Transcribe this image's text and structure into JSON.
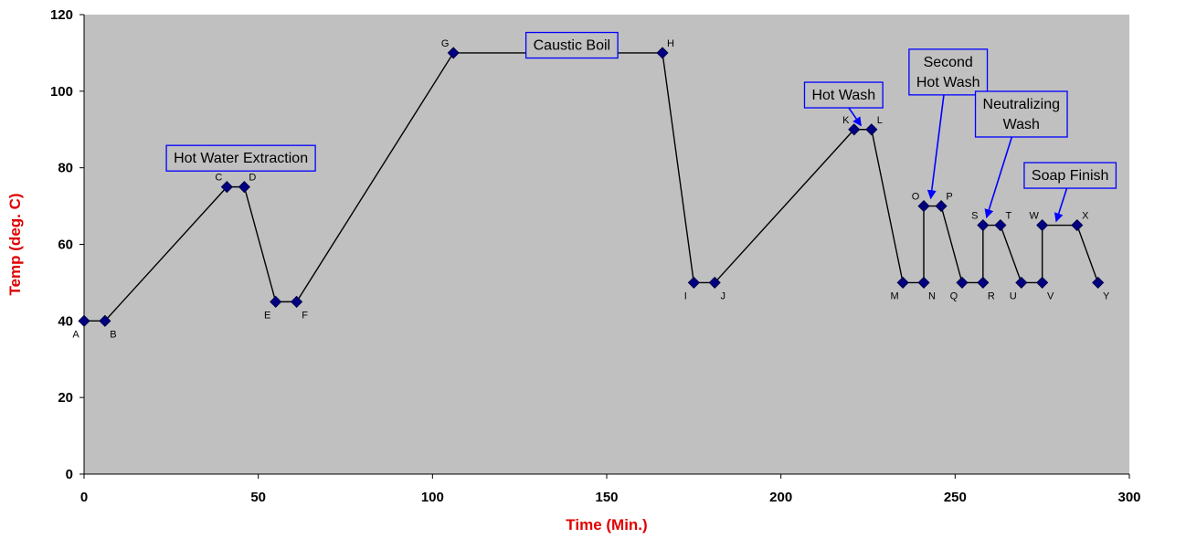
{
  "chart_data": {
    "type": "line",
    "xlabel": "Time (Min.)",
    "ylabel": "Temp (deg. C)",
    "xlim": [
      0,
      300
    ],
    "ylim": [
      0,
      120
    ],
    "xticks": [
      0,
      50,
      100,
      150,
      200,
      250,
      300
    ],
    "yticks": [
      0,
      20,
      40,
      60,
      80,
      100,
      120
    ],
    "grid": false,
    "colors": {
      "plot_background": "#c0c0c0",
      "line": "#000000",
      "marker": "#000080",
      "axis_title": "#e00000",
      "annotation_border": "#0000ff",
      "arrow": "#0000ff"
    },
    "points": [
      {
        "label": "A",
        "x": 0,
        "y": 40
      },
      {
        "label": "B",
        "x": 6,
        "y": 40
      },
      {
        "label": "C",
        "x": 41,
        "y": 75
      },
      {
        "label": "D",
        "x": 46,
        "y": 75
      },
      {
        "label": "E",
        "x": 55,
        "y": 45
      },
      {
        "label": "F",
        "x": 61,
        "y": 45
      },
      {
        "label": "G",
        "x": 106,
        "y": 110
      },
      {
        "label": "H",
        "x": 166,
        "y": 110
      },
      {
        "label": "I",
        "x": 175,
        "y": 50
      },
      {
        "label": "J",
        "x": 181,
        "y": 50
      },
      {
        "label": "K",
        "x": 221,
        "y": 90
      },
      {
        "label": "L",
        "x": 226,
        "y": 90
      },
      {
        "label": "M",
        "x": 235,
        "y": 50
      },
      {
        "label": "N",
        "x": 241,
        "y": 50
      },
      {
        "label": "O",
        "x": 241,
        "y": 70
      },
      {
        "label": "P",
        "x": 246,
        "y": 70
      },
      {
        "label": "Q",
        "x": 252,
        "y": 50
      },
      {
        "label": "R",
        "x": 258,
        "y": 50
      },
      {
        "label": "S",
        "x": 258,
        "y": 65
      },
      {
        "label": "T",
        "x": 263,
        "y": 65
      },
      {
        "label": "U",
        "x": 269,
        "y": 50
      },
      {
        "label": "V",
        "x": 275,
        "y": 50
      },
      {
        "label": "W",
        "x": 275,
        "y": 65
      },
      {
        "label": "X",
        "x": 285,
        "y": 65
      },
      {
        "label": "Y",
        "x": 291,
        "y": 50
      }
    ],
    "annotations": [
      {
        "lines": [
          "Hot Water Extraction"
        ],
        "x": 45,
        "y": 82.5
      },
      {
        "lines": [
          "Caustic Boil"
        ],
        "x": 140,
        "y": 112
      },
      {
        "lines": [
          "Hot Wash"
        ],
        "x": 218,
        "y": 99,
        "arrow_to": [
          223,
          91
        ]
      },
      {
        "lines": [
          "Second",
          "Hot Wash"
        ],
        "x": 248,
        "y": 105,
        "arrow_to": [
          243,
          72
        ]
      },
      {
        "lines": [
          "Neutralizing",
          "Wash"
        ],
        "x": 269,
        "y": 94,
        "arrow_to": [
          259,
          67
        ]
      },
      {
        "lines": [
          "Soap Finish"
        ],
        "x": 283,
        "y": 78,
        "arrow_to": [
          279,
          66
        ]
      }
    ]
  }
}
